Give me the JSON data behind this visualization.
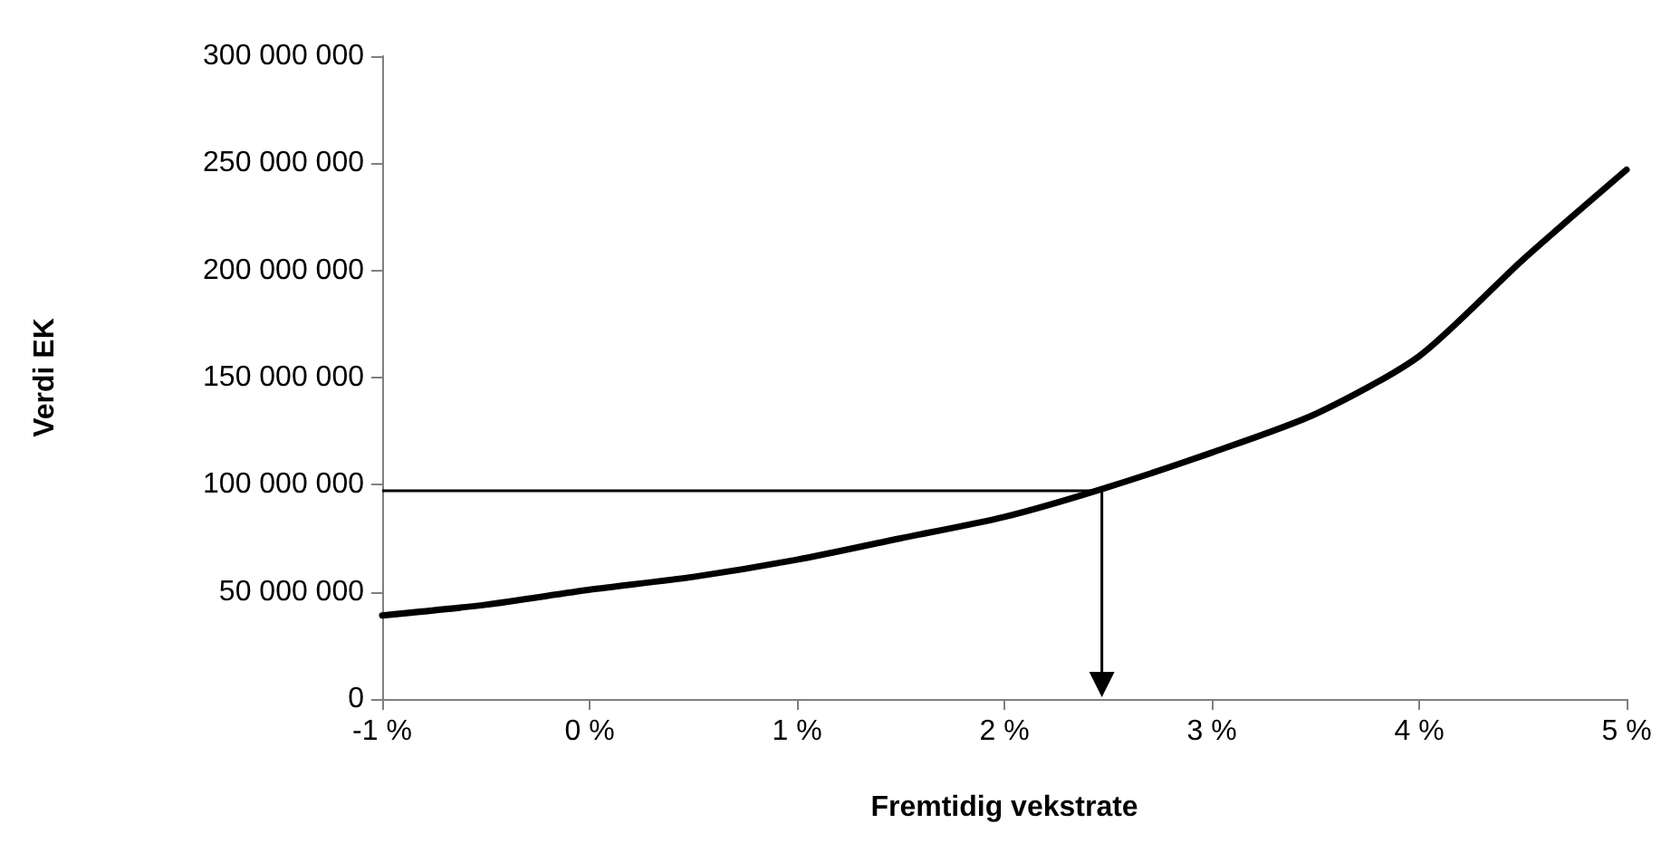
{
  "chart_data": {
    "type": "line",
    "xlabel": "Fremtidig vekstrate",
    "ylabel": "Verdi EK",
    "x": [
      -1,
      -0.5,
      0,
      0.5,
      1,
      1.5,
      2,
      2.47,
      3,
      3.5,
      4,
      4.5,
      5
    ],
    "series": [
      {
        "color": "#000000",
        "values": [
          39000000,
          44000000,
          51000000,
          57000000,
          65000000,
          75000000,
          85000000,
          98000000,
          115000000,
          133000000,
          160000000,
          205000000,
          247000000
        ]
      }
    ],
    "xlim": [
      -1,
      5
    ],
    "xticks": [
      {
        "value": -1,
        "label": "-1 %"
      },
      {
        "value": 0,
        "label": "0 %"
      },
      {
        "value": 1,
        "label": "1 %"
      },
      {
        "value": 2,
        "label": "2 %"
      },
      {
        "value": 3,
        "label": "3 %"
      },
      {
        "value": 4,
        "label": "4 %"
      },
      {
        "value": 5,
        "label": "5 %"
      }
    ],
    "ylim": [
      0,
      300000000
    ],
    "yticks": [
      {
        "value": 0,
        "label": "0"
      },
      {
        "value": 50000000,
        "label": "50 000 000"
      },
      {
        "value": 100000000,
        "label": "100 000 000"
      },
      {
        "value": 150000000,
        "label": "150 000 000"
      },
      {
        "value": 200000000,
        "label": "200 000 000"
      },
      {
        "value": 250000000,
        "label": "250 000 000"
      },
      {
        "value": 300000000,
        "label": "300 000 000"
      }
    ],
    "ref_lines": [
      {
        "axis": "y",
        "value": 97000000
      },
      {
        "axis": "x",
        "value": 2.47
      }
    ],
    "grid": false,
    "marker": "none",
    "line_style": "solid"
  }
}
